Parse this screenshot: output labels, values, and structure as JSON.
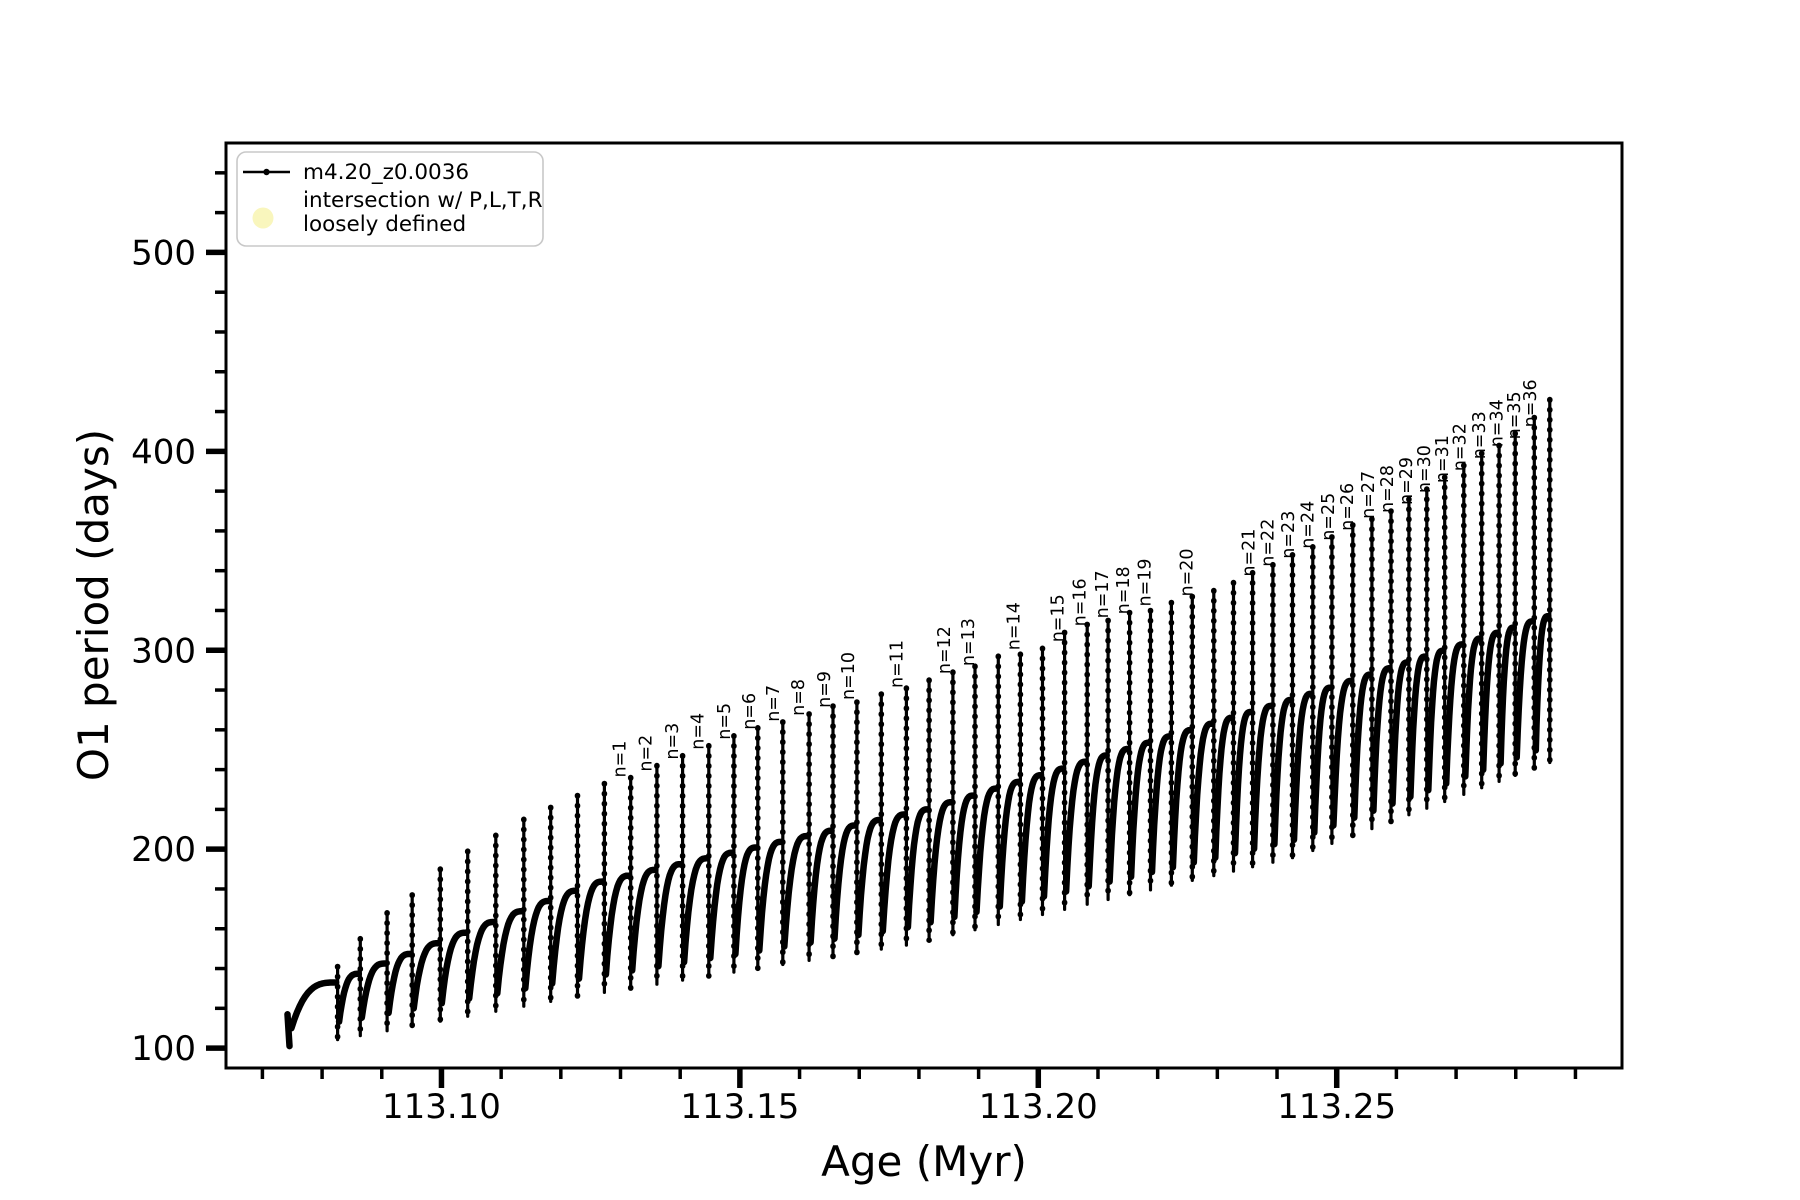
{
  "figure": {
    "background": "#ffffff",
    "axes_color": "#000000"
  },
  "chart_data": {
    "type": "line",
    "title": "",
    "xlabel": "Age (Myr)",
    "ylabel": "O1 period (days)",
    "xlim": [
      113.0639,
      113.2978
    ],
    "ylim": [
      90,
      555
    ],
    "x_major_ticks": [
      113.1,
      113.15,
      113.2,
      113.25
    ],
    "x_minor_step": 0.01,
    "y_major_ticks": [
      100,
      200,
      300,
      400,
      500
    ],
    "y_minor_step": 20,
    "grid": false,
    "legend": {
      "position": "upper left",
      "series_label": "m4.20_z0.0036",
      "series_color": "#000000",
      "intersection_label_line1": "intersection w/ P,L,T,R",
      "intersection_label_line2": "loosely defined",
      "intersection_marker_color": "#f9f6bd"
    },
    "series_description": "O1 pulsation period vs age: sawtooth shark-fin cycles with a tall narrow period spike and deep dip at each thermal pulse; labeled pulses n=1 to n=36",
    "start_point": {
      "age": 113.0742,
      "period": 117,
      "initial_dip": 101
    },
    "arc_top_trend": [
      [
        113.0742,
        115
      ],
      [
        113.0826,
        133
      ],
      [
        113.1262,
        183
      ],
      [
        113.1817,
        220
      ],
      [
        113.247,
        279
      ],
      [
        113.2866,
        318
      ]
    ],
    "dip_trend": [
      [
        113.0747,
        100
      ],
      [
        113.123,
        126
      ],
      [
        113.1784,
        152
      ],
      [
        113.243,
        196
      ],
      [
        113.2861,
        244
      ]
    ],
    "pulses": [
      {
        "age": 113.0826,
        "peak": 141,
        "label": null
      },
      {
        "age": 113.0864,
        "peak": 155,
        "label": null
      },
      {
        "age": 113.0909,
        "peak": 168,
        "label": null
      },
      {
        "age": 113.0951,
        "peak": 177,
        "label": null
      },
      {
        "age": 113.0998,
        "peak": 190,
        "label": null
      },
      {
        "age": 113.1044,
        "peak": 199,
        "label": null
      },
      {
        "age": 113.1091,
        "peak": 207,
        "label": null
      },
      {
        "age": 113.1138,
        "peak": 215,
        "label": null
      },
      {
        "age": 113.1183,
        "peak": 221,
        "label": null
      },
      {
        "age": 113.1228,
        "peak": 227,
        "label": null
      },
      {
        "age": 113.1273,
        "peak": 233,
        "label": "n=1"
      },
      {
        "age": 113.1317,
        "peak": 236,
        "label": "n=2"
      },
      {
        "age": 113.1361,
        "peak": 242,
        "label": "n=3"
      },
      {
        "age": 113.1404,
        "peak": 247,
        "label": "n=4"
      },
      {
        "age": 113.1448,
        "peak": 252,
        "label": "n=5"
      },
      {
        "age": 113.149,
        "peak": 257,
        "label": "n=6"
      },
      {
        "age": 113.153,
        "peak": 261,
        "label": "n=7"
      },
      {
        "age": 113.1572,
        "peak": 264,
        "label": "n=8"
      },
      {
        "age": 113.1616,
        "peak": 268,
        "label": "n=9"
      },
      {
        "age": 113.1656,
        "peak": 272,
        "label": "n=10"
      },
      {
        "age": 113.1696,
        "peak": 274,
        "label": null
      },
      {
        "age": 113.1737,
        "peak": 278,
        "label": "n=11"
      },
      {
        "age": 113.1779,
        "peak": 281,
        "label": null
      },
      {
        "age": 113.1817,
        "peak": 285,
        "label": "n=12"
      },
      {
        "age": 113.1857,
        "peak": 289,
        "label": "n=13"
      },
      {
        "age": 113.1894,
        "peak": 292,
        "label": null
      },
      {
        "age": 113.1933,
        "peak": 297,
        "label": "n=14"
      },
      {
        "age": 113.197,
        "peak": 298,
        "label": null
      },
      {
        "age": 113.2007,
        "peak": 301,
        "label": "n=15"
      },
      {
        "age": 113.2044,
        "peak": 309,
        "label": "n=16"
      },
      {
        "age": 113.2082,
        "peak": 313,
        "label": "n=17"
      },
      {
        "age": 113.2117,
        "peak": 315,
        "label": "n=18"
      },
      {
        "age": 113.2153,
        "peak": 319,
        "label": "n=19"
      },
      {
        "age": 113.2188,
        "peak": 320,
        "label": null
      },
      {
        "age": 113.2223,
        "peak": 324,
        "label": "n=20"
      },
      {
        "age": 113.2258,
        "peak": 327,
        "label": null
      },
      {
        "age": 113.2294,
        "peak": 330,
        "label": null
      },
      {
        "age": 113.2327,
        "peak": 334,
        "label": "n=21"
      },
      {
        "age": 113.2359,
        "peak": 339,
        "label": "n=22"
      },
      {
        "age": 113.2393,
        "peak": 343,
        "label": "n=23"
      },
      {
        "age": 113.2426,
        "peak": 348,
        "label": "n=24"
      },
      {
        "age": 113.246,
        "peak": 352,
        "label": "n=25"
      },
      {
        "age": 113.2492,
        "peak": 357,
        "label": "n=26"
      },
      {
        "age": 113.2527,
        "peak": 363,
        "label": "n=27"
      },
      {
        "age": 113.2559,
        "peak": 366,
        "label": "n=28"
      },
      {
        "age": 113.2591,
        "peak": 370,
        "label": "n=29"
      },
      {
        "age": 113.2621,
        "peak": 376,
        "label": "n=30"
      },
      {
        "age": 113.2651,
        "peak": 381,
        "label": "n=31"
      },
      {
        "age": 113.2681,
        "peak": 387,
        "label": "n=32"
      },
      {
        "age": 113.2713,
        "peak": 393,
        "label": "n=33"
      },
      {
        "age": 113.2743,
        "peak": 399,
        "label": "n=34"
      },
      {
        "age": 113.2772,
        "peak": 403,
        "label": "n=35"
      },
      {
        "age": 113.2799,
        "peak": 409,
        "label": "n=36"
      },
      {
        "age": 113.2831,
        "peak": 417,
        "label": null
      },
      {
        "age": 113.2857,
        "peak": 426,
        "label": null
      }
    ]
  }
}
